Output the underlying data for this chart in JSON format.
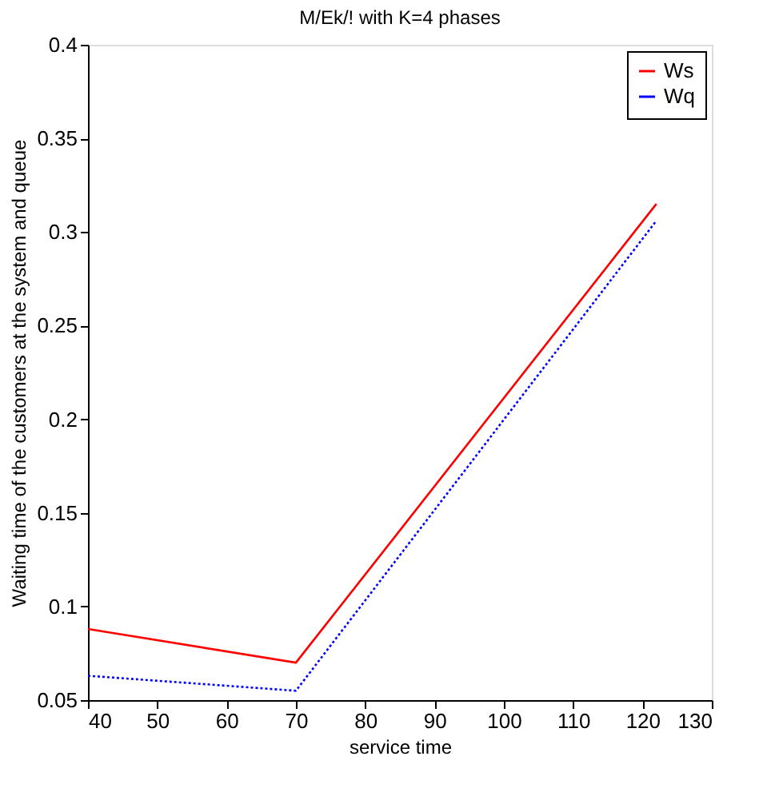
{
  "chart_data": {
    "type": "line",
    "title": "M/Ek/! with K=4 phases",
    "xlabel": "service time",
    "ylabel": "Waiting time of the customers at the system and queue",
    "x": [
      40,
      70,
      122
    ],
    "series": [
      {
        "name": "Ws",
        "color": "#ff0000",
        "values": [
          0.088,
          0.07,
          0.315
        ],
        "line_style": "solid"
      },
      {
        "name": "Wq",
        "color": "#0000ff",
        "values": [
          0.063,
          0.055,
          0.306
        ],
        "line_style": "dotted"
      }
    ],
    "xlim": [
      40,
      130
    ],
    "xticks": [
      40,
      50,
      60,
      70,
      80,
      90,
      100,
      110,
      120,
      130
    ],
    "ylim": [
      0.05,
      0.4
    ],
    "yticks": [
      0.05,
      0.1,
      0.15,
      0.2,
      0.25,
      0.3,
      0.35,
      0.4
    ],
    "grid": false,
    "legend": "top right",
    "marker": "none"
  }
}
